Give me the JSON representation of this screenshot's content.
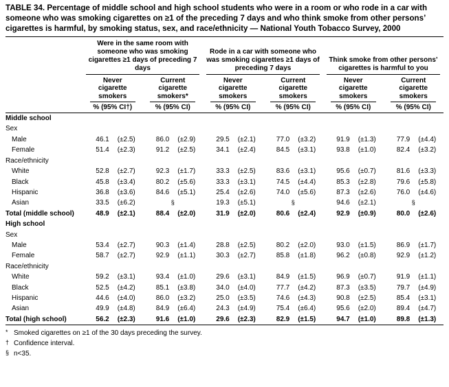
{
  "title": "TABLE 34. Percentage of middle school and high school students who were in a room or who rode in a car with someone who was smoking cigarettes on ≥1 of the preceding 7 days and who think smoke from other persons’ cigarettes is harmful, by smoking status, sex, and race/ethnicity — National Youth Tobacco Survey, 2000",
  "groups": [
    {
      "label": "Were in the same room with someone who was smoking cigarettes ≥1 days of preceding 7 days"
    },
    {
      "label": "Rode in a car with someone who was smoking cigarettes ≥1 days of preceding 7 days"
    },
    {
      "label": "Think smoke from other persons’ cigarettes is harmful to you"
    }
  ],
  "col_headers": [
    "Never cigarette smokers",
    "Current cigarette smokers*",
    "Never cigarette smokers",
    "Current cigarette smokers",
    "Never cigarette smokers",
    "Current cigarette smokers"
  ],
  "measure_headers": [
    "% (95% CI†)",
    "% (95% CI)",
    "% (95% CI)",
    "% (95% CI)",
    "% (95% CI)",
    "% (95% CI)"
  ],
  "rows": [
    {
      "type": "section",
      "label": "Middle school"
    },
    {
      "type": "subsection",
      "label": "Sex"
    },
    {
      "type": "data",
      "label": "Male",
      "cells": [
        [
          "46.1",
          "(±2.5)"
        ],
        [
          "86.0",
          "(±2.9)"
        ],
        [
          "29.5",
          "(±2.1)"
        ],
        [
          "77.0",
          "(±3.2)"
        ],
        [
          "91.9",
          "(±1.3)"
        ],
        [
          "77.9",
          "(±4.4)"
        ]
      ]
    },
    {
      "type": "data",
      "label": "Female",
      "cells": [
        [
          "51.4",
          "(±2.3)"
        ],
        [
          "91.2",
          "(±2.5)"
        ],
        [
          "34.1",
          "(±2.4)"
        ],
        [
          "84.5",
          "(±3.1)"
        ],
        [
          "93.8",
          "(±1.0)"
        ],
        [
          "82.4",
          "(±3.2)"
        ]
      ]
    },
    {
      "type": "subsection",
      "label": "Race/ethnicity"
    },
    {
      "type": "data",
      "label": "White",
      "cells": [
        [
          "52.8",
          "(±2.7)"
        ],
        [
          "92.3",
          "(±1.7)"
        ],
        [
          "33.3",
          "(±2.5)"
        ],
        [
          "83.6",
          "(±3.1)"
        ],
        [
          "95.6",
          "(±0.7)"
        ],
        [
          "81.6",
          "(±3.3)"
        ]
      ]
    },
    {
      "type": "data",
      "label": "Black",
      "cells": [
        [
          "45.8",
          "(±3.4)"
        ],
        [
          "80.2",
          "(±5.6)"
        ],
        [
          "33.3",
          "(±3.1)"
        ],
        [
          "74.5",
          "(±4.4)"
        ],
        [
          "85.3",
          "(±2.8)"
        ],
        [
          "79.6",
          "(±5.8)"
        ]
      ]
    },
    {
      "type": "data",
      "label": "Hispanic",
      "cells": [
        [
          "36.8",
          "(±3.6)"
        ],
        [
          "84.6",
          "(±5.1)"
        ],
        [
          "25.4",
          "(±2.6)"
        ],
        [
          "74.0",
          "(±5.6)"
        ],
        [
          "87.3",
          "(±2.6)"
        ],
        [
          "76.0",
          "(±4.6)"
        ]
      ]
    },
    {
      "type": "data",
      "label": "Asian",
      "cells": [
        [
          "33.5",
          "(±6.2)"
        ],
        "§",
        [
          "19.3",
          "(±5.1)"
        ],
        "§",
        [
          "94.6",
          "(±2.1)"
        ],
        "§"
      ]
    },
    {
      "type": "total",
      "label": "Total (middle school)",
      "cells": [
        [
          "48.9",
          "(±2.1)"
        ],
        [
          "88.4",
          "(±2.0)"
        ],
        [
          "31.9",
          "(±2.0)"
        ],
        [
          "80.6",
          "(±2.4)"
        ],
        [
          "92.9",
          "(±0.9)"
        ],
        [
          "80.0",
          "(±2.6)"
        ]
      ]
    },
    {
      "type": "section",
      "label": "High school"
    },
    {
      "type": "subsection",
      "label": "Sex"
    },
    {
      "type": "data",
      "label": "Male",
      "cells": [
        [
          "53.4",
          "(±2.7)"
        ],
        [
          "90.3",
          "(±1.4)"
        ],
        [
          "28.8",
          "(±2.5)"
        ],
        [
          "80.2",
          "(±2.0)"
        ],
        [
          "93.0",
          "(±1.5)"
        ],
        [
          "86.9",
          "(±1.7)"
        ]
      ]
    },
    {
      "type": "data",
      "label": "Female",
      "cells": [
        [
          "58.7",
          "(±2.7)"
        ],
        [
          "92.9",
          "(±1.1)"
        ],
        [
          "30.3",
          "(±2.7)"
        ],
        [
          "85.8",
          "(±1.8)"
        ],
        [
          "96.2",
          "(±0.8)"
        ],
        [
          "92.9",
          "(±1.2)"
        ]
      ]
    },
    {
      "type": "subsection",
      "label": "Race/ethnicity"
    },
    {
      "type": "data",
      "label": "White",
      "cells": [
        [
          "59.2",
          "(±3.1)"
        ],
        [
          "93.4",
          "(±1.0)"
        ],
        [
          "29.6",
          "(±3.1)"
        ],
        [
          "84.9",
          "(±1.5)"
        ],
        [
          "96.9",
          "(±0.7)"
        ],
        [
          "91.9",
          "(±1.1)"
        ]
      ]
    },
    {
      "type": "data",
      "label": "Black",
      "cells": [
        [
          "52.5",
          "(±4.2)"
        ],
        [
          "85.1",
          "(±3.8)"
        ],
        [
          "34.0",
          "(±4.0)"
        ],
        [
          "77.7",
          "(±4.2)"
        ],
        [
          "87.3",
          "(±3.5)"
        ],
        [
          "79.7",
          "(±4.9)"
        ]
      ]
    },
    {
      "type": "data",
      "label": "Hispanic",
      "cells": [
        [
          "44.6",
          "(±4.0)"
        ],
        [
          "86.0",
          "(±3.2)"
        ],
        [
          "25.0",
          "(±3.5)"
        ],
        [
          "74.6",
          "(±4.3)"
        ],
        [
          "90.8",
          "(±2.5)"
        ],
        [
          "85.4",
          "(±3.1)"
        ]
      ]
    },
    {
      "type": "data",
      "label": "Asian",
      "cells": [
        [
          "49.9",
          "(±4.8)"
        ],
        [
          "84.9",
          "(±6.4)"
        ],
        [
          "24.3",
          "(±4.9)"
        ],
        [
          "75.4",
          "(±6.4)"
        ],
        [
          "95.6",
          "(±2.0)"
        ],
        [
          "89.4",
          "(±4.7)"
        ]
      ]
    },
    {
      "type": "total",
      "label": "Total (high school)",
      "cells": [
        [
          "56.2",
          "(±2.3)"
        ],
        [
          "91.6",
          "(±1.0)"
        ],
        [
          "29.6",
          "(±2.3)"
        ],
        [
          "82.9",
          "(±1.5)"
        ],
        [
          "94.7",
          "(±1.0)"
        ],
        [
          "89.8",
          "(±1.3)"
        ]
      ]
    }
  ],
  "footnotes": [
    {
      "symbol": "*",
      "text": "Smoked cigarettes on ≥1 of the 30 days preceding the survey."
    },
    {
      "symbol": "†",
      "text": "Confidence interval."
    },
    {
      "symbol": "§",
      "text": "n<35."
    }
  ]
}
